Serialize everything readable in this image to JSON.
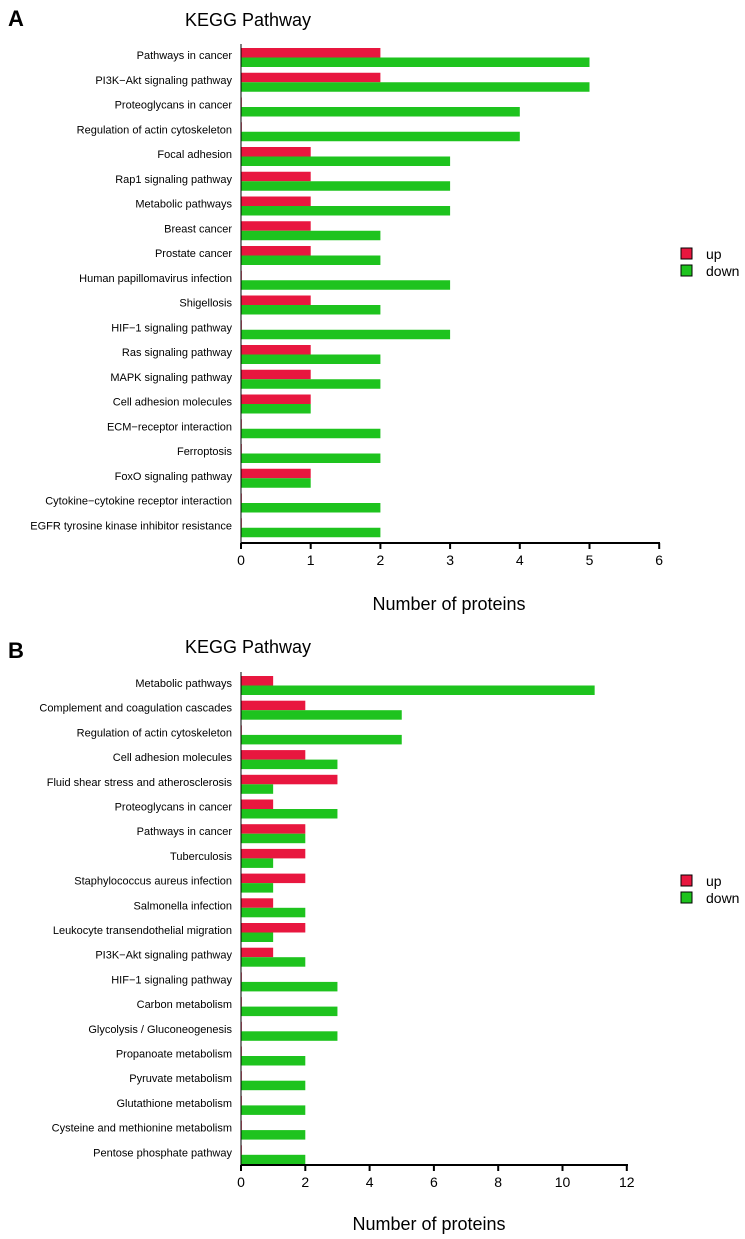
{
  "colors": {
    "up": "#e8173f",
    "down": "#1ec31e",
    "axis": "#000000"
  },
  "chart_data": [
    {
      "panel": "A",
      "type": "bar",
      "orientation": "horizontal",
      "title": "KEGG Pathway",
      "xlabel": "Number of proteins",
      "xlim": [
        0,
        6
      ],
      "xticks": [
        0,
        1,
        2,
        3,
        4,
        5,
        6
      ],
      "legend_position": "right",
      "categories": [
        "Pathways in cancer",
        "PI3K−Akt signaling pathway",
        "Proteoglycans in cancer",
        "Regulation of actin cytoskeleton",
        "Focal adhesion",
        "Rap1 signaling pathway",
        "Metabolic pathways",
        "Breast cancer",
        "Prostate cancer",
        "Human papillomavirus infection",
        "Shigellosis",
        "HIF−1 signaling pathway",
        "Ras signaling pathway",
        "MAPK signaling pathway",
        "Cell adhesion molecules",
        "ECM−receptor interaction",
        "Ferroptosis",
        "FoxO signaling pathway",
        "Cytokine−cytokine receptor interaction",
        "EGFR tyrosine kinase inhibitor resistance"
      ],
      "series": [
        {
          "name": "up",
          "values": [
            2,
            2,
            0,
            0,
            1,
            1,
            1,
            1,
            1,
            0,
            1,
            0,
            1,
            1,
            1,
            0,
            0,
            1,
            0,
            0
          ]
        },
        {
          "name": "down",
          "values": [
            5,
            5,
            4,
            4,
            3,
            3,
            3,
            2,
            2,
            3,
            2,
            3,
            2,
            2,
            1,
            2,
            2,
            1,
            2,
            2
          ]
        }
      ]
    },
    {
      "panel": "B",
      "type": "bar",
      "orientation": "horizontal",
      "title": "KEGG Pathway",
      "xlabel": "Number of proteins",
      "xlim": [
        0,
        12
      ],
      "xticks": [
        0,
        2,
        4,
        6,
        8,
        10,
        12
      ],
      "legend_position": "right",
      "categories": [
        "Metabolic pathways",
        "Complement and coagulation cascades",
        "Regulation of actin cytoskeleton",
        "Cell adhesion molecules",
        "Fluid shear stress and atherosclerosis",
        "Proteoglycans in cancer",
        "Pathways in cancer",
        "Tuberculosis",
        "Staphylococcus aureus infection",
        "Salmonella infection",
        "Leukocyte transendothelial migration",
        "PI3K−Akt signaling pathway",
        "HIF−1 signaling pathway",
        "Carbon metabolism",
        "Glycolysis / Gluconeogenesis",
        "Propanoate metabolism",
        "Pyruvate metabolism",
        "Glutathione metabolism",
        "Cysteine and methionine metabolism",
        "Pentose phosphate pathway"
      ],
      "series": [
        {
          "name": "up",
          "values": [
            1,
            2,
            0,
            2,
            3,
            1,
            2,
            2,
            2,
            1,
            2,
            1,
            0,
            0,
            0,
            0,
            0,
            0,
            0,
            0
          ]
        },
        {
          "name": "down",
          "values": [
            11,
            5,
            5,
            3,
            1,
            3,
            2,
            1,
            1,
            2,
            1,
            2,
            3,
            3,
            3,
            2,
            2,
            2,
            2,
            2
          ]
        }
      ]
    }
  ]
}
